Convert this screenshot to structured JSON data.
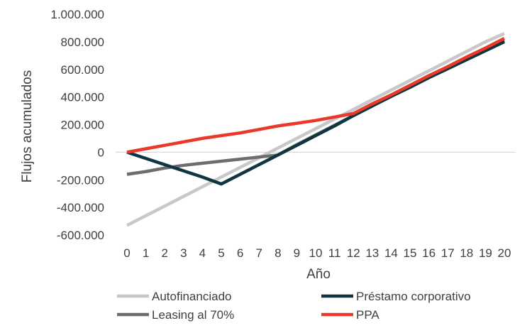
{
  "chart_data": {
    "type": "line",
    "title": "",
    "xlabel": "Año",
    "ylabel": "Flujos acumulados",
    "x": [
      0,
      1,
      2,
      3,
      4,
      5,
      6,
      7,
      8,
      9,
      10,
      11,
      12,
      13,
      14,
      15,
      16,
      17,
      18,
      19,
      20
    ],
    "x_tick_labels": [
      "0",
      "1",
      "2",
      "3",
      "4",
      "5",
      "6",
      "7",
      "8",
      "9",
      "10",
      "11",
      "12",
      "13",
      "14",
      "15",
      "16",
      "17",
      "18",
      "19",
      "20"
    ],
    "ylim": [
      -600000,
      1000000
    ],
    "y_ticks": [
      -600000,
      -400000,
      -200000,
      0,
      200000,
      400000,
      600000,
      800000,
      1000000
    ],
    "y_tick_labels": [
      "-600.000",
      "-400.000",
      "-200.000",
      "0",
      "200.000",
      "400.000",
      "600.000",
      "800.000",
      "1.000.000"
    ],
    "grid": false,
    "zero_line": true,
    "legend_position": "bottom",
    "series": [
      {
        "name": "Autofinanciado",
        "color": "#c8c8c8",
        "values": [
          -530000,
          -460000,
          -390000,
          -320000,
          -250000,
          -180000,
          -110000,
          -40000,
          30000,
          100000,
          170000,
          240000,
          310000,
          380000,
          450000,
          520000,
          590000,
          660000,
          730000,
          800000,
          860000
        ]
      },
      {
        "name": "Préstamo corporativo",
        "color": "#0f3541",
        "values": [
          0,
          -45000,
          -90000,
          -135000,
          -180000,
          -230000,
          -160000,
          -90000,
          -20000,
          50000,
          120000,
          190000,
          265000,
          335000,
          405000,
          470000,
          540000,
          605000,
          670000,
          735000,
          800000
        ]
      },
      {
        "name": "Leasing al 70%",
        "color": "#6d6d6d",
        "values": [
          -160000,
          -140000,
          -115000,
          -95000,
          -80000,
          -65000,
          -50000,
          -35000,
          -20000,
          55000,
          125000,
          195000,
          265000,
          335000,
          405000,
          475000,
          540000,
          610000,
          675000,
          745000,
          810000
        ]
      },
      {
        "name": "PPA",
        "color": "#e8392b",
        "values": [
          0,
          25000,
          50000,
          75000,
          100000,
          120000,
          140000,
          165000,
          190000,
          210000,
          230000,
          255000,
          280000,
          350000,
          415000,
          485000,
          555000,
          620000,
          690000,
          755000,
          825000
        ]
      }
    ],
    "legend_order": [
      0,
      1,
      2,
      3
    ]
  }
}
